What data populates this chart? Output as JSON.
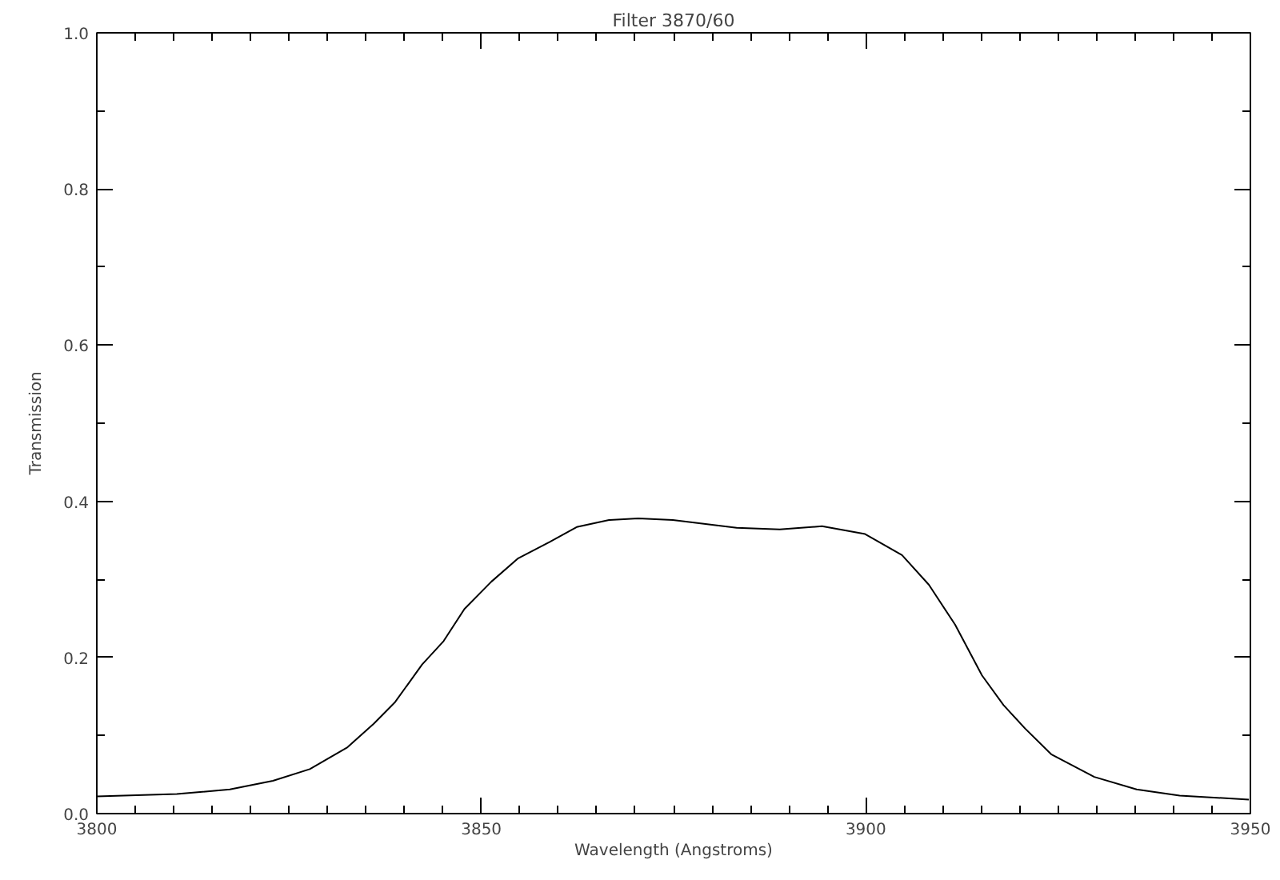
{
  "chart_data": {
    "type": "line",
    "title": "Filter 3870/60",
    "xlabel": "Wavelength (Angstroms)",
    "ylabel": "Transmission",
    "x": [
      3800,
      3810.4,
      3817.3,
      3822.9,
      3827.7,
      3832.6,
      3836,
      3838.8,
      3842.3,
      3845.1,
      3847.8,
      3851.3,
      3854.8,
      3858.9,
      3862.4,
      3866.6,
      3870.4,
      3874.9,
      3883.2,
      3888.8,
      3894.3,
      3899.9,
      3904.7,
      3908.2,
      3911.6,
      3915.1,
      3917.9,
      3920.7,
      3924.1,
      3929.7,
      3935.2,
      3940.8,
      3949.8
    ],
    "series": [
      {
        "color": "#000000",
        "values": [
          0.022,
          0.025,
          0.031,
          0.042,
          0.057,
          0.085,
          0.115,
          0.143,
          0.191,
          0.221,
          0.262,
          0.297,
          0.327,
          0.348,
          0.367,
          0.376,
          0.378,
          0.376,
          0.366,
          0.364,
          0.368,
          0.358,
          0.331,
          0.293,
          0.242,
          0.177,
          0.139,
          0.109,
          0.076,
          0.047,
          0.031,
          0.023,
          0.018
        ]
      }
    ],
    "xlim": [
      3800,
      3950
    ],
    "ylim": [
      0,
      1
    ],
    "xticks": [
      3800,
      {
        "value": 3805,
        "label": null
      },
      {
        "value": 3810,
        "label": null
      },
      {
        "value": 3815,
        "label": null
      },
      {
        "value": 3820,
        "label": null
      },
      {
        "value": 3825,
        "label": null
      },
      {
        "value": 3830,
        "label": null
      },
      {
        "value": 3835,
        "label": null
      },
      {
        "value": 3840,
        "label": null
      },
      {
        "value": 3845,
        "label": null
      },
      3850,
      {
        "value": 3855,
        "label": null
      },
      {
        "value": 3860,
        "label": null
      },
      {
        "value": 3865,
        "label": null
      },
      {
        "value": 3870,
        "label": null
      },
      {
        "value": 3875,
        "label": null
      },
      {
        "value": 3880,
        "label": null
      },
      {
        "value": 3885,
        "label": null
      },
      {
        "value": 3890,
        "label": null
      },
      {
        "value": 3895,
        "label": null
      },
      3900,
      {
        "value": 3905,
        "label": null
      },
      {
        "value": 3910,
        "label": null
      },
      {
        "value": 3915,
        "label": null
      },
      {
        "value": 3920,
        "label": null
      },
      {
        "value": 3925,
        "label": null
      },
      {
        "value": 3930,
        "label": null
      },
      {
        "value": 3935,
        "label": null
      },
      {
        "value": 3940,
        "label": null
      },
      {
        "value": 3945,
        "label": null
      },
      3950
    ],
    "yticks": [
      {
        "value": 0,
        "label": "0.0"
      },
      {
        "value": 0.1,
        "label": null
      },
      0.2,
      {
        "value": 0.3,
        "label": null
      },
      0.4,
      {
        "value": 0.5,
        "label": null
      },
      0.6,
      {
        "value": 0.7,
        "label": null
      },
      0.8,
      {
        "value": 0.9,
        "label": null
      },
      {
        "value": 1,
        "label": "1.0"
      }
    ],
    "grid": false,
    "marker": "none",
    "line_style": "solid"
  }
}
